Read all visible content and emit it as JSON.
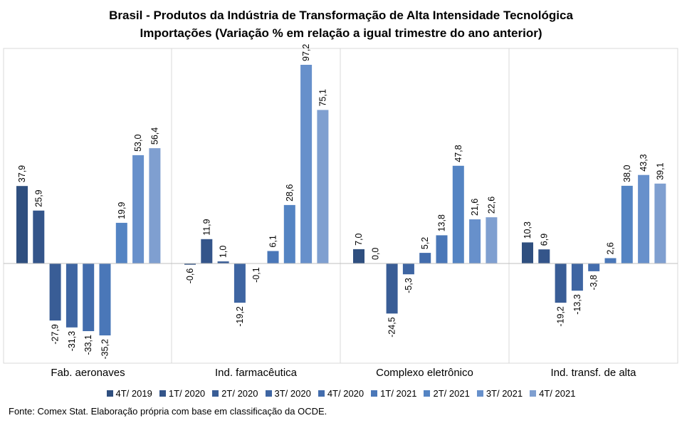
{
  "title_line1": "Brasil - Produtos da Indústria de Transformação de Alta Intensidade Tecnológica",
  "title_line2": "Importações (Variação % em relação a igual trimestre do ano anterior)",
  "source": "Fonte: Comex Stat. Elaboração própria com base em classificação da OCDE.",
  "chart_data": {
    "type": "bar",
    "title": "Brasil - Produtos da Indústria de Transformação de Alta Intensidade Tecnológica",
    "subtitle": "Importações (Variação % em relação a igual trimestre do ano anterior)",
    "categories": [
      "Fab. aeronaves",
      "Ind. farmacêutica",
      "Complexo eletrônico",
      "Ind. transf. de alta"
    ],
    "series": [
      {
        "name": "4T/ 2019",
        "color": "#2f4f7f",
        "values": [
          37.9,
          -0.6,
          7.0,
          10.3
        ],
        "labels": [
          "37,9",
          "-0,6",
          "7,0",
          "10,3"
        ]
      },
      {
        "name": "1T/ 2020",
        "color": "#34558a",
        "values": [
          25.9,
          11.9,
          0.0,
          6.9
        ],
        "labels": [
          "25,9",
          "11,9",
          "0,0",
          "6,9"
        ]
      },
      {
        "name": "2T/ 2020",
        "color": "#395d96",
        "values": [
          -27.9,
          1.0,
          -24.5,
          -19.2
        ],
        "labels": [
          "-27,9",
          "1,0",
          "-24,5",
          "-19,2"
        ]
      },
      {
        "name": "3T/ 2020",
        "color": "#3e65a2",
        "values": [
          -31.3,
          -19.2,
          -5.3,
          -13.3
        ],
        "labels": [
          "-31,3",
          "-19,2",
          "-5,3",
          "-13,3"
        ]
      },
      {
        "name": "4T/ 2020",
        "color": "#436dad",
        "values": [
          -33.1,
          -0.1,
          5.2,
          -3.8
        ],
        "labels": [
          "-33,1",
          "-0,1",
          "5,2",
          "-3,8"
        ]
      },
      {
        "name": "1T/ 2021",
        "color": "#4a77b8",
        "values": [
          -35.2,
          6.1,
          13.8,
          2.6
        ],
        "labels": [
          "-35,2",
          "6,1",
          "13,8",
          "2,6"
        ]
      },
      {
        "name": "2T/ 2021",
        "color": "#5484c3",
        "values": [
          19.9,
          28.6,
          47.8,
          38.0
        ],
        "labels": [
          "19,9",
          "28,6",
          "47,8",
          "38,0"
        ]
      },
      {
        "name": "3T/ 2021",
        "color": "#6790cb",
        "values": [
          53.0,
          97.2,
          21.6,
          43.3
        ],
        "labels": [
          "53,0",
          "97,2",
          "21,6",
          "43,3"
        ]
      },
      {
        "name": "4T/ 2021",
        "color": "#7f9fd0",
        "values": [
          56.4,
          75.1,
          22.6,
          39.1
        ],
        "labels": [
          "56,4",
          "75,1",
          "22,6",
          "39,1"
        ]
      }
    ],
    "ylim": [
      -50,
      105
    ],
    "grid": false,
    "legend_position": "bottom"
  }
}
